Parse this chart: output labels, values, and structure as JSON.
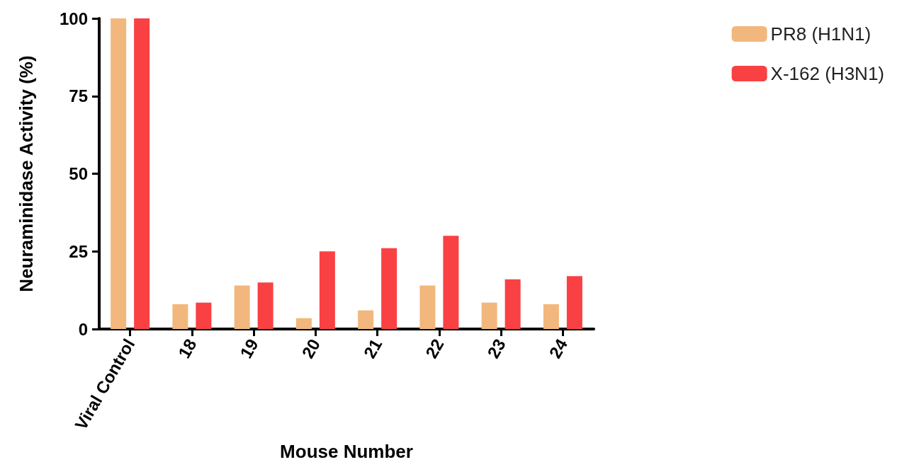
{
  "chart_data": {
    "type": "bar",
    "xlabel": "Mouse Number",
    "ylabel": "Neuraminidase Activity (%)",
    "categories": [
      "Viral Control",
      "18",
      "19",
      "20",
      "21",
      "22",
      "23",
      "24"
    ],
    "series": [
      {
        "name": "PR8 (H1N1)",
        "color": "#f2b77d",
        "values": [
          100,
          8,
          14,
          3.5,
          6,
          14,
          8.5,
          8
        ]
      },
      {
        "name": "X-162 (H3N1)",
        "color": "#f94144",
        "values": [
          100,
          8.5,
          15,
          25,
          26,
          30,
          16,
          17
        ]
      }
    ],
    "ylim": [
      0,
      100
    ],
    "yticks": [
      0,
      25,
      50,
      75,
      100
    ],
    "grid": false,
    "legend": "top right"
  }
}
